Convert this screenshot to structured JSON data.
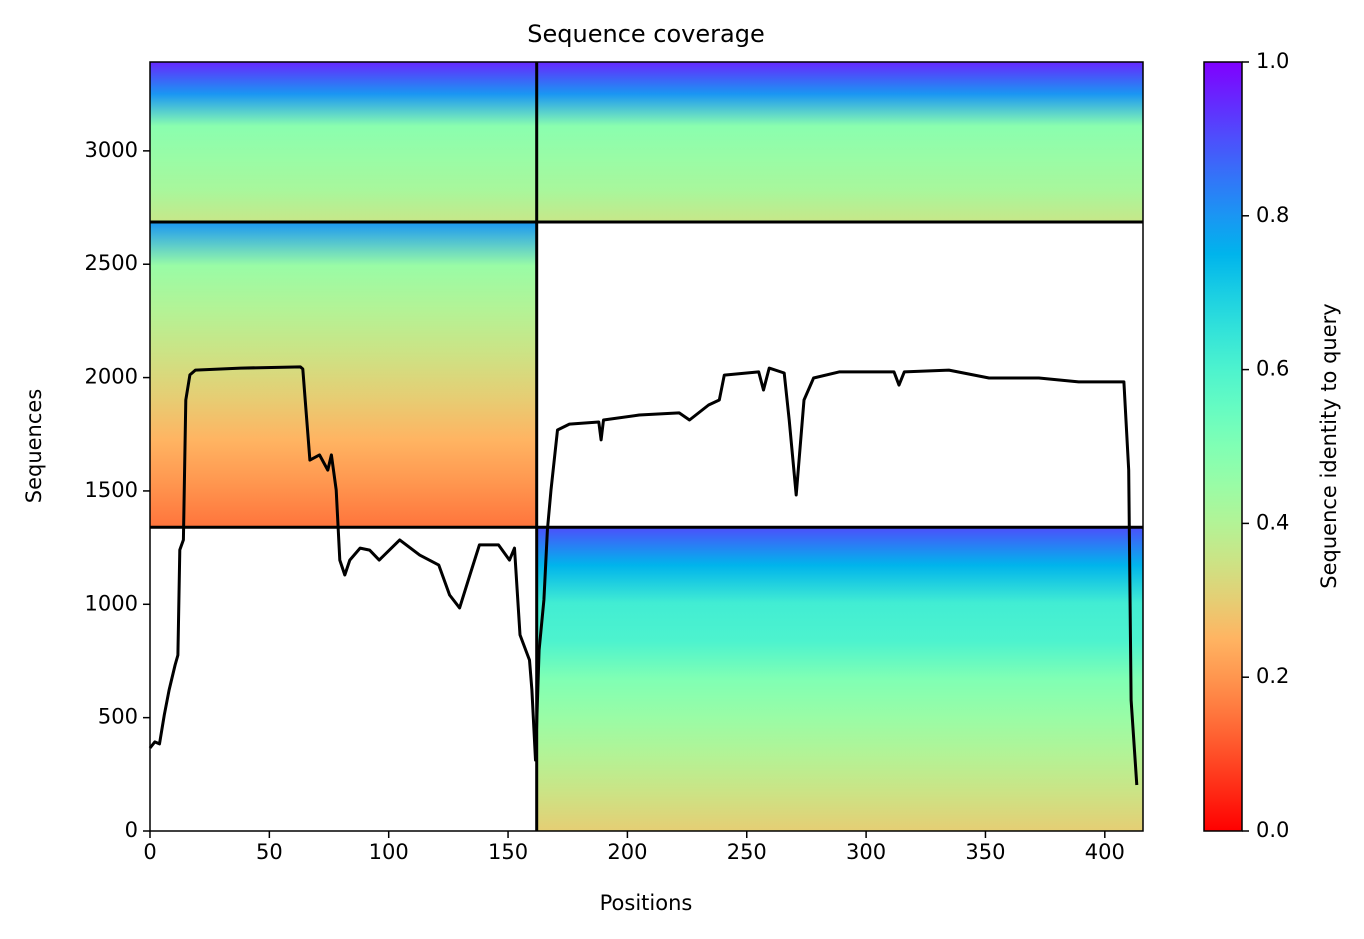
{
  "chart_data": {
    "type": "coverage",
    "title": "Sequence coverage",
    "xlabel": "Positions",
    "ylabel": "Sequences",
    "xlim": [
      0,
      416
    ],
    "xticks": [
      0,
      50,
      100,
      150,
      200,
      250,
      300,
      350,
      400
    ],
    "ylim": [
      0,
      3392
    ],
    "yticks": [
      0,
      500,
      1000,
      1500,
      2000,
      2500,
      3000
    ],
    "colormap": "rainbow_r",
    "colorbar": {
      "label": "Sequence identity to query",
      "clim": [
        0,
        1
      ],
      "ticks": [
        {
          "value": 0,
          "label": "0.0"
        },
        0.2,
        0.4,
        0.6,
        0.8,
        {
          "value": 1,
          "label": "1.0"
        }
      ]
    },
    "msa_blocks": [
      {
        "x": [
          0,
          162
        ],
        "y": [
          2686,
          3392
        ],
        "identity": [
          0.36,
          0.42,
          0.45,
          0.48,
          0.8,
          0.95
        ]
      },
      {
        "x": [
          162,
          416
        ],
        "y": [
          2686,
          3392
        ],
        "identity": [
          0.36,
          0.42,
          0.45,
          0.48,
          0.8,
          0.95
        ]
      },
      {
        "x": [
          0,
          162
        ],
        "y": [
          1340,
          2686
        ],
        "identity": [
          0.15,
          0.2,
          0.25,
          0.3,
          0.35,
          0.4,
          0.45,
          0.8
        ]
      },
      {
        "x": [
          162,
          416
        ],
        "y": [
          0,
          1340
        ],
        "identity": [
          0.3,
          0.35,
          0.4,
          0.45,
          0.5,
          0.6,
          0.62,
          0.75,
          0.9
        ]
      }
    ],
    "boundaries": {
      "x": [
        162
      ],
      "y": [
        1340,
        2686
      ]
    },
    "line": {
      "color": "#000000",
      "x": [
        0,
        2,
        4,
        6,
        8,
        10.5,
        11.7,
        12.5,
        14,
        15,
        16.7,
        19,
        38,
        63,
        64,
        65,
        67,
        71,
        74.5,
        76,
        78,
        79.5,
        81.6,
        83.7,
        88,
        92,
        96,
        104.6,
        113,
        121,
        125.5,
        129.7,
        134,
        138,
        146,
        150.6,
        152.7,
        155,
        159,
        160,
        161.5,
        163,
        165,
        166.5,
        168,
        170.7,
        175.7,
        188,
        189,
        190,
        205,
        221.7,
        226,
        234,
        238.5,
        240.6,
        255,
        257,
        259.4,
        265.7,
        267.8,
        270.7,
        274,
        278,
        288.7,
        311.7,
        313.8,
        316,
        334.7,
        351.5,
        372.4,
        389,
        408,
        410,
        411,
        413.4
      ],
      "values": [
        366,
        393,
        384,
        512,
        622,
        732,
        776,
        1240,
        1284,
        1901,
        2012,
        2033,
        2042,
        2047,
        2038,
        1901,
        1636,
        1659,
        1592,
        1659,
        1504,
        1195,
        1129,
        1195,
        1248,
        1239,
        1195,
        1284,
        1217,
        1173,
        1041,
        984,
        1129,
        1262,
        1262,
        1195,
        1248,
        865,
        754,
        622,
        313,
        798,
        1019,
        1328,
        1504,
        1769,
        1795,
        1804,
        1725,
        1813,
        1835,
        1844,
        1813,
        1879,
        1901,
        2011,
        2025,
        1945,
        2042,
        2020,
        1813,
        1482,
        1901,
        1998,
        2025,
        2025,
        1967,
        2025,
        2033,
        1998,
        1998,
        1981,
        1981,
        1592,
        578,
        203
      ]
    }
  }
}
